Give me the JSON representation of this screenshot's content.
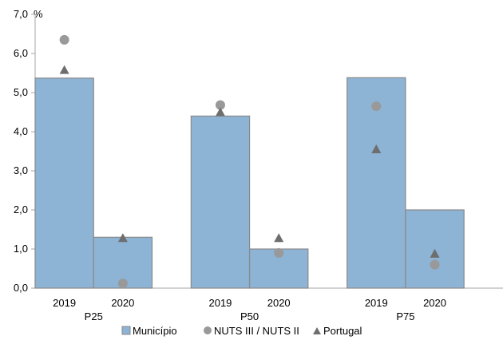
{
  "chart_data": {
    "type": "bar",
    "unit_label": "%",
    "ylim": [
      0,
      7
    ],
    "y_ticks": [
      "0,0",
      "1,0",
      "2,0",
      "3,0",
      "4,0",
      "5,0",
      "6,0",
      "7,0"
    ],
    "grid": false,
    "groups": [
      {
        "label": "P25",
        "years": [
          "2019",
          "2020"
        ],
        "municipio": [
          5.37,
          1.3
        ],
        "nuts": [
          6.35,
          0.12
        ],
        "portugal": [
          5.58,
          1.28
        ]
      },
      {
        "label": "P50",
        "years": [
          "2019",
          "2020"
        ],
        "municipio": [
          4.4,
          1.0
        ],
        "nuts": [
          4.68,
          0.9
        ],
        "portugal": [
          4.5,
          1.28
        ]
      },
      {
        "label": "P75",
        "years": [
          "2019",
          "2020"
        ],
        "municipio": [
          5.38,
          2.0
        ],
        "nuts": [
          4.65,
          0.6
        ],
        "portugal": [
          3.55,
          0.88
        ]
      }
    ],
    "legend": {
      "position": "bottom",
      "items": [
        {
          "label": "Município",
          "marker": "square"
        },
        {
          "label": "NUTS III / NUTS II",
          "marker": "circle"
        },
        {
          "label": "Portugal",
          "marker": "triangle"
        }
      ]
    },
    "colors": {
      "bar_fill": "#8DB3D5",
      "bar_stroke": "#8A8A8A",
      "circle": "#999999",
      "triangle": "#6E6E6E",
      "axis": "#A6A6A6"
    }
  }
}
